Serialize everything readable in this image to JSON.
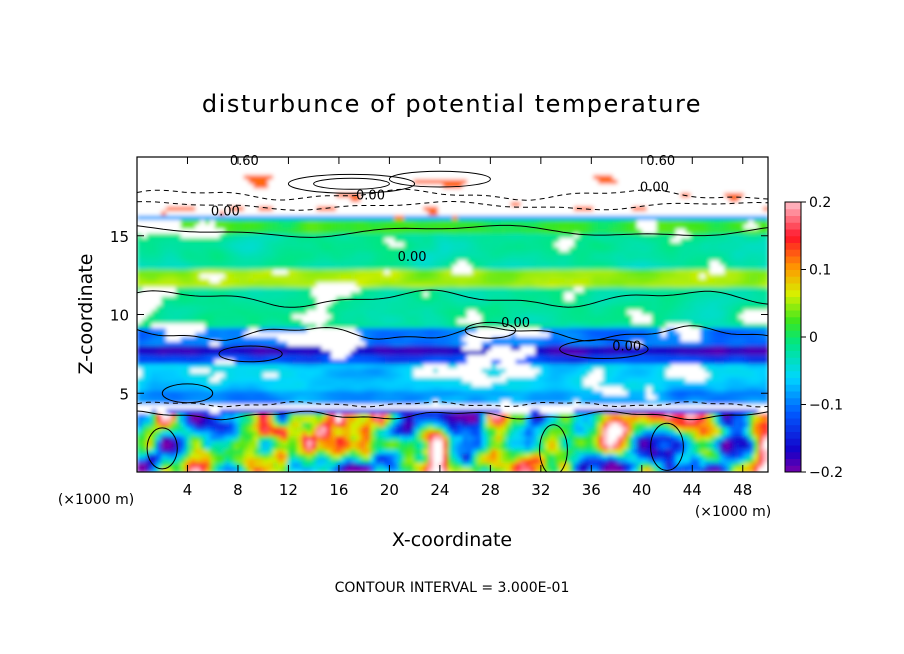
{
  "chart_data": {
    "type": "heatmap",
    "title": "disturbunce of potential temperature",
    "xlabel": "X-coordinate",
    "ylabel": "Z-coordinate",
    "x_unit": "(×1000 m)",
    "z_unit": "(×1000 m)",
    "x_ticks": [
      4,
      8,
      12,
      16,
      20,
      24,
      28,
      32,
      36,
      40,
      44,
      48
    ],
    "z_ticks": [
      5,
      10,
      15
    ],
    "xlim": [
      0,
      50
    ],
    "zlim": [
      0,
      20
    ],
    "colorbar": {
      "range": [
        -0.2,
        0.2
      ],
      "tick_labels": [
        "0.2",
        "0.1",
        "0",
        "−0.1",
        "−0.2"
      ],
      "tick_values": [
        0.2,
        0.1,
        0,
        -0.1,
        -0.2
      ]
    },
    "contour_labels": [
      "0.60",
      "0.00",
      "0.00",
      "0.60",
      "0.00",
      "0.00",
      "0.00",
      "0.00"
    ],
    "footnote": "CONTOUR INTERVAL = 3.000E-01",
    "grid": false
  }
}
